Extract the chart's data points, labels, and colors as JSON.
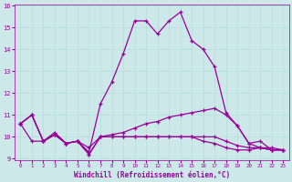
{
  "xlabel": "Windchill (Refroidissement éolien,°C)",
  "bg_color": "#cce8e8",
  "line_color": "#990099",
  "xlim": [
    -0.5,
    23.5
  ],
  "ylim": [
    9,
    16
  ],
  "xticks": [
    0,
    1,
    2,
    3,
    4,
    5,
    6,
    7,
    8,
    9,
    10,
    11,
    12,
    13,
    14,
    15,
    16,
    17,
    18,
    19,
    20,
    21,
    22,
    23
  ],
  "yticks": [
    9,
    10,
    11,
    12,
    13,
    14,
    15,
    16
  ],
  "series": [
    [
      10.6,
      11.0,
      9.8,
      10.2,
      9.7,
      9.8,
      9.3,
      11.5,
      12.5,
      13.8,
      15.3,
      15.3,
      14.7,
      15.3,
      15.7,
      14.4,
      14.0,
      13.2,
      11.1,
      10.5,
      9.7,
      9.8,
      9.4,
      9.4
    ],
    [
      10.6,
      11.0,
      9.8,
      10.1,
      9.7,
      9.8,
      9.2,
      10.0,
      10.1,
      10.2,
      10.4,
      10.6,
      10.7,
      10.9,
      11.0,
      11.1,
      11.2,
      11.3,
      11.0,
      10.5,
      9.7,
      9.5,
      9.5,
      9.4
    ],
    [
      10.6,
      11.0,
      9.8,
      10.1,
      9.7,
      9.8,
      9.2,
      10.0,
      10.0,
      10.0,
      10.0,
      10.0,
      10.0,
      10.0,
      10.0,
      10.0,
      10.0,
      10.0,
      9.8,
      9.6,
      9.5,
      9.5,
      9.4,
      9.4
    ],
    [
      10.6,
      9.8,
      9.8,
      10.1,
      9.7,
      9.8,
      9.5,
      10.0,
      10.0,
      10.0,
      10.0,
      10.0,
      10.0,
      10.0,
      10.0,
      10.0,
      9.8,
      9.7,
      9.5,
      9.4,
      9.4,
      9.5,
      9.4,
      9.4
    ]
  ],
  "x_values": [
    0,
    1,
    2,
    3,
    4,
    5,
    6,
    7,
    8,
    9,
    10,
    11,
    12,
    13,
    14,
    15,
    16,
    17,
    18,
    19,
    20,
    21,
    22,
    23
  ]
}
